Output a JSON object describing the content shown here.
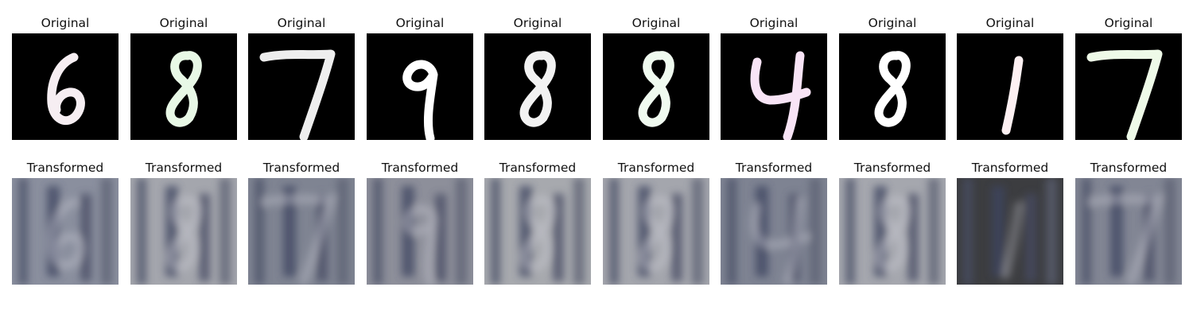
{
  "figure": {
    "original_label": "Original",
    "transformed_label": "Transformed"
  },
  "samples": [
    {
      "digit": "6",
      "stroke": "#f6eef2",
      "transformed_tone": "#8a8f9e"
    },
    {
      "digit": "8",
      "stroke": "#e8f8e6",
      "transformed_tone": "#a4a6ad"
    },
    {
      "digit": "7",
      "stroke": "#eeeeee",
      "transformed_tone": "#7f8492"
    },
    {
      "digit": "9",
      "stroke": "#ffffff",
      "transformed_tone": "#8d8f9a"
    },
    {
      "digit": "8",
      "stroke": "#f2f2f2",
      "transformed_tone": "#a7a9ae"
    },
    {
      "digit": "8",
      "stroke": "#f0fbf0",
      "transformed_tone": "#a4a6ad"
    },
    {
      "digit": "4",
      "stroke": "#f8e4f6",
      "transformed_tone": "#7e8392"
    },
    {
      "digit": "8",
      "stroke": "#ffffff",
      "transformed_tone": "#a5a7ae"
    },
    {
      "digit": "1",
      "stroke": "#fdf0f2",
      "transformed_tone": "#3c3d40"
    },
    {
      "digit": "7",
      "stroke": "#eefae8",
      "transformed_tone": "#828694"
    }
  ]
}
